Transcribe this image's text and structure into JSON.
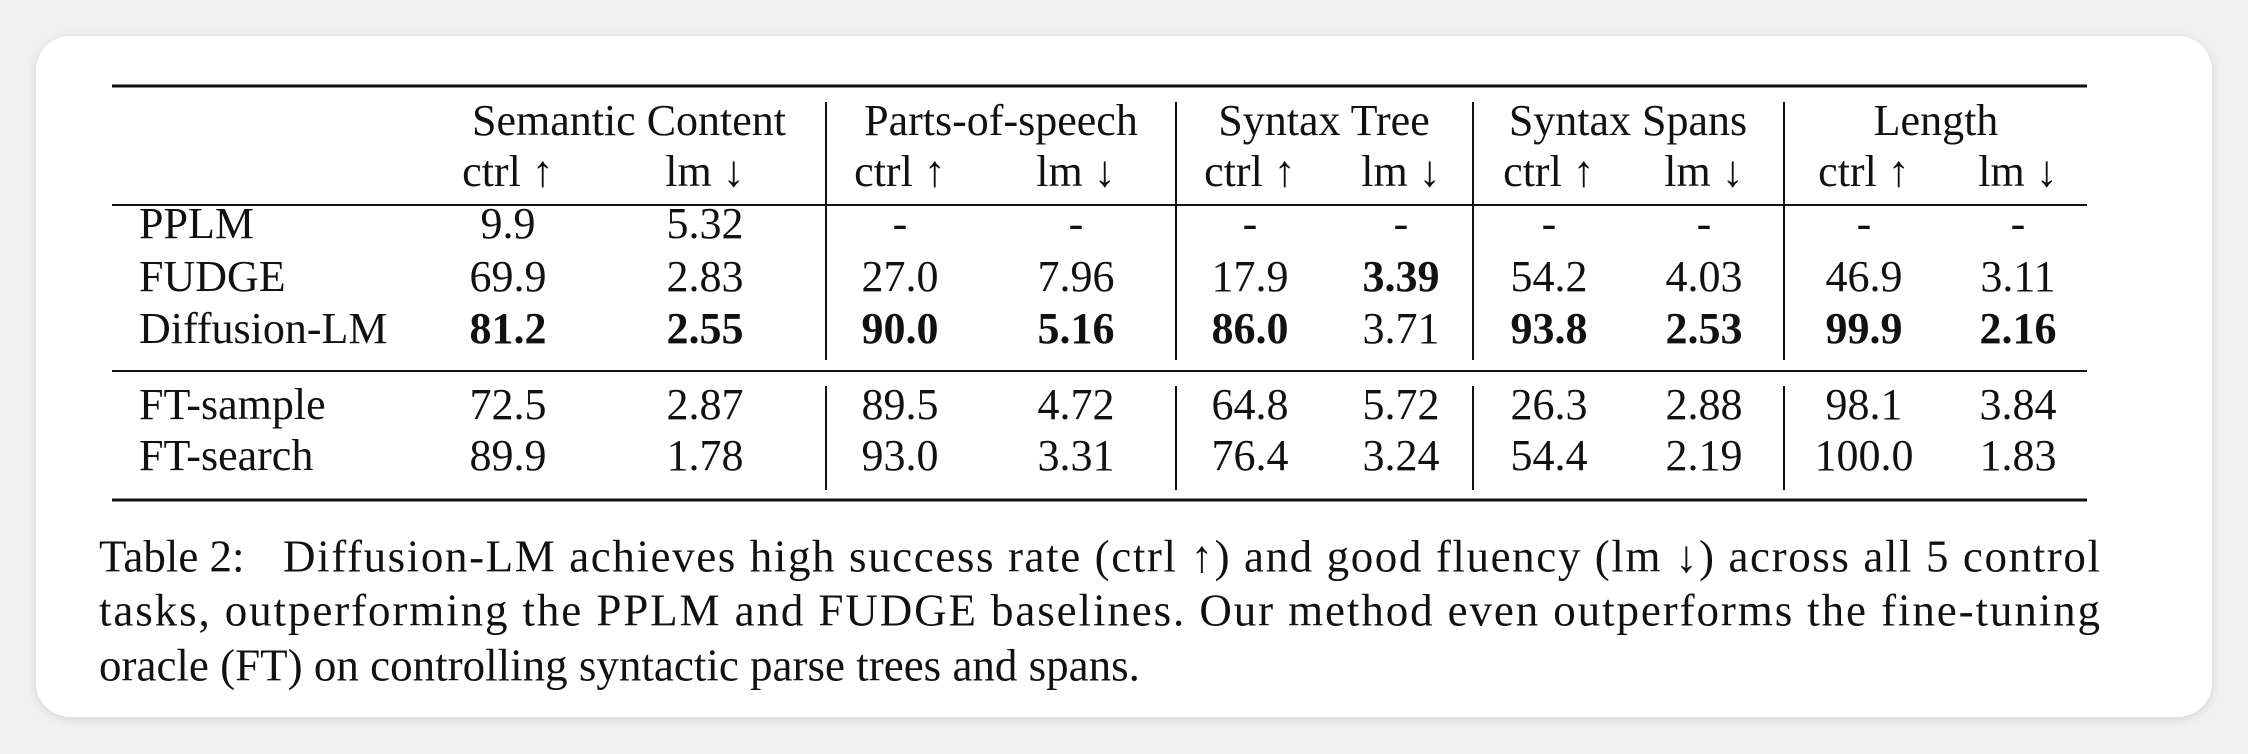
{
  "table": {
    "groups": [
      "Semantic Content",
      "Parts-of-speech",
      "Syntax Tree",
      "Syntax Spans",
      "Length"
    ],
    "columns": [
      "ctrl ↑",
      "lm ↓",
      "ctrl ↑",
      "lm ↓",
      "ctrl ↑",
      "lm ↓",
      "ctrl ↑",
      "lm ↓",
      "ctrl ↑",
      "lm ↓"
    ],
    "rows": [
      {
        "label": "PPLM",
        "cells": [
          "9.9",
          "5.32",
          "-",
          "-",
          "-",
          "-",
          "-",
          "-",
          "-",
          "-"
        ],
        "bold": [
          false,
          false,
          false,
          false,
          false,
          false,
          false,
          false,
          false,
          false
        ]
      },
      {
        "label": "FUDGE",
        "cells": [
          "69.9",
          "2.83",
          "27.0",
          "7.96",
          "17.9",
          "3.39",
          "54.2",
          "4.03",
          "46.9",
          "3.11"
        ],
        "bold": [
          false,
          false,
          false,
          false,
          false,
          true,
          false,
          false,
          false,
          false
        ]
      },
      {
        "label": "Diffusion-LM",
        "cells": [
          "81.2",
          "2.55",
          "90.0",
          "5.16",
          "86.0",
          "3.71",
          "93.8",
          "2.53",
          "99.9",
          "2.16"
        ],
        "bold": [
          true,
          true,
          true,
          true,
          true,
          false,
          true,
          true,
          true,
          true
        ]
      },
      {
        "label": "FT-sample",
        "cells": [
          "72.5",
          "2.87",
          "89.5",
          "4.72",
          "64.8",
          "5.72",
          "26.3",
          "2.88",
          "98.1",
          "3.84"
        ],
        "bold": [
          false,
          false,
          false,
          false,
          false,
          false,
          false,
          false,
          false,
          false
        ]
      },
      {
        "label": "FT-search",
        "cells": [
          "89.9",
          "1.78",
          "93.0",
          "3.31",
          "76.4",
          "3.24",
          "54.4",
          "2.19",
          "100.0",
          "1.83"
        ],
        "bold": [
          false,
          false,
          false,
          false,
          false,
          false,
          false,
          false,
          false,
          false
        ]
      }
    ]
  },
  "caption": {
    "label": "Table 2:",
    "lines": [
      "Diffusion-LM achieves high success rate (ctrl ↑) and good fluency (lm ↓) across all 5 control",
      "tasks, outperforming the PPLM and FUDGE baselines. Our method even outperforms the fine-tuning",
      "oracle (FT) on controlling syntactic parse trees and spans."
    ]
  }
}
